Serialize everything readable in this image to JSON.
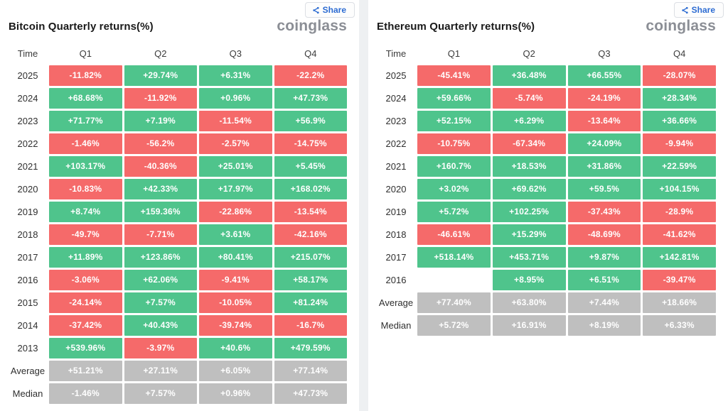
{
  "colors": {
    "pos": "#4fc48c",
    "neg": "#f56a6a",
    "sum": "#bfbfbf",
    "accent": "#2c6bd2",
    "logo": "#8b8e95"
  },
  "panels": [
    {
      "title": "Bitcoin Quarterly returns(%)",
      "share": {
        "label": "Share"
      },
      "logo": "coinglass",
      "columns": [
        "Time",
        "Q1",
        "Q2",
        "Q3",
        "Q4"
      ],
      "rows": [
        {
          "label": "2025",
          "cells": [
            {
              "text": "-11.82%",
              "type": "neg"
            },
            {
              "text": "+29.74%",
              "type": "pos"
            },
            {
              "text": "+6.31%",
              "type": "pos"
            },
            {
              "text": "-22.2%",
              "type": "neg"
            }
          ]
        },
        {
          "label": "2024",
          "cells": [
            {
              "text": "+68.68%",
              "type": "pos"
            },
            {
              "text": "-11.92%",
              "type": "neg"
            },
            {
              "text": "+0.96%",
              "type": "pos"
            },
            {
              "text": "+47.73%",
              "type": "pos"
            }
          ]
        },
        {
          "label": "2023",
          "cells": [
            {
              "text": "+71.77%",
              "type": "pos"
            },
            {
              "text": "+7.19%",
              "type": "pos"
            },
            {
              "text": "-11.54%",
              "type": "neg"
            },
            {
              "text": "+56.9%",
              "type": "pos"
            }
          ]
        },
        {
          "label": "2022",
          "cells": [
            {
              "text": "-1.46%",
              "type": "neg"
            },
            {
              "text": "-56.2%",
              "type": "neg"
            },
            {
              "text": "-2.57%",
              "type": "neg"
            },
            {
              "text": "-14.75%",
              "type": "neg"
            }
          ]
        },
        {
          "label": "2021",
          "cells": [
            {
              "text": "+103.17%",
              "type": "pos"
            },
            {
              "text": "-40.36%",
              "type": "neg"
            },
            {
              "text": "+25.01%",
              "type": "pos"
            },
            {
              "text": "+5.45%",
              "type": "pos"
            }
          ]
        },
        {
          "label": "2020",
          "cells": [
            {
              "text": "-10.83%",
              "type": "neg"
            },
            {
              "text": "+42.33%",
              "type": "pos"
            },
            {
              "text": "+17.97%",
              "type": "pos"
            },
            {
              "text": "+168.02%",
              "type": "pos"
            }
          ]
        },
        {
          "label": "2019",
          "cells": [
            {
              "text": "+8.74%",
              "type": "pos"
            },
            {
              "text": "+159.36%",
              "type": "pos"
            },
            {
              "text": "-22.86%",
              "type": "neg"
            },
            {
              "text": "-13.54%",
              "type": "neg"
            }
          ]
        },
        {
          "label": "2018",
          "cells": [
            {
              "text": "-49.7%",
              "type": "neg"
            },
            {
              "text": "-7.71%",
              "type": "neg"
            },
            {
              "text": "+3.61%",
              "type": "pos"
            },
            {
              "text": "-42.16%",
              "type": "neg"
            }
          ]
        },
        {
          "label": "2017",
          "cells": [
            {
              "text": "+11.89%",
              "type": "pos"
            },
            {
              "text": "+123.86%",
              "type": "pos"
            },
            {
              "text": "+80.41%",
              "type": "pos"
            },
            {
              "text": "+215.07%",
              "type": "pos"
            }
          ]
        },
        {
          "label": "2016",
          "cells": [
            {
              "text": "-3.06%",
              "type": "neg"
            },
            {
              "text": "+62.06%",
              "type": "pos"
            },
            {
              "text": "-9.41%",
              "type": "neg"
            },
            {
              "text": "+58.17%",
              "type": "pos"
            }
          ]
        },
        {
          "label": "2015",
          "cells": [
            {
              "text": "-24.14%",
              "type": "neg"
            },
            {
              "text": "+7.57%",
              "type": "pos"
            },
            {
              "text": "-10.05%",
              "type": "neg"
            },
            {
              "text": "+81.24%",
              "type": "pos"
            }
          ]
        },
        {
          "label": "2014",
          "cells": [
            {
              "text": "-37.42%",
              "type": "neg"
            },
            {
              "text": "+40.43%",
              "type": "pos"
            },
            {
              "text": "-39.74%",
              "type": "neg"
            },
            {
              "text": "-16.7%",
              "type": "neg"
            }
          ]
        },
        {
          "label": "2013",
          "cells": [
            {
              "text": "+539.96%",
              "type": "pos"
            },
            {
              "text": "-3.97%",
              "type": "neg"
            },
            {
              "text": "+40.6%",
              "type": "pos"
            },
            {
              "text": "+479.59%",
              "type": "pos"
            }
          ]
        },
        {
          "label": "Average",
          "cells": [
            {
              "text": "+51.21%",
              "type": "sum"
            },
            {
              "text": "+27.11%",
              "type": "sum"
            },
            {
              "text": "+6.05%",
              "type": "sum"
            },
            {
              "text": "+77.14%",
              "type": "sum"
            }
          ]
        },
        {
          "label": "Median",
          "cells": [
            {
              "text": "-1.46%",
              "type": "sum"
            },
            {
              "text": "+7.57%",
              "type": "sum"
            },
            {
              "text": "+0.96%",
              "type": "sum"
            },
            {
              "text": "+47.73%",
              "type": "sum"
            }
          ]
        }
      ]
    },
    {
      "title": "Ethereum Quarterly returns(%)",
      "share": {
        "label": "Share"
      },
      "logo": "coinglass",
      "columns": [
        "Time",
        "Q1",
        "Q2",
        "Q3",
        "Q4"
      ],
      "rows": [
        {
          "label": "2025",
          "cells": [
            {
              "text": "-45.41%",
              "type": "neg"
            },
            {
              "text": "+36.48%",
              "type": "pos"
            },
            {
              "text": "+66.55%",
              "type": "pos"
            },
            {
              "text": "-28.07%",
              "type": "neg"
            }
          ]
        },
        {
          "label": "2024",
          "cells": [
            {
              "text": "+59.66%",
              "type": "pos"
            },
            {
              "text": "-5.74%",
              "type": "neg"
            },
            {
              "text": "-24.19%",
              "type": "neg"
            },
            {
              "text": "+28.34%",
              "type": "pos"
            }
          ]
        },
        {
          "label": "2023",
          "cells": [
            {
              "text": "+52.15%",
              "type": "pos"
            },
            {
              "text": "+6.29%",
              "type": "pos"
            },
            {
              "text": "-13.64%",
              "type": "neg"
            },
            {
              "text": "+36.66%",
              "type": "pos"
            }
          ]
        },
        {
          "label": "2022",
          "cells": [
            {
              "text": "-10.75%",
              "type": "neg"
            },
            {
              "text": "-67.34%",
              "type": "neg"
            },
            {
              "text": "+24.09%",
              "type": "pos"
            },
            {
              "text": "-9.94%",
              "type": "neg"
            }
          ]
        },
        {
          "label": "2021",
          "cells": [
            {
              "text": "+160.7%",
              "type": "pos"
            },
            {
              "text": "+18.53%",
              "type": "pos"
            },
            {
              "text": "+31.86%",
              "type": "pos"
            },
            {
              "text": "+22.59%",
              "type": "pos"
            }
          ]
        },
        {
          "label": "2020",
          "cells": [
            {
              "text": "+3.02%",
              "type": "pos"
            },
            {
              "text": "+69.62%",
              "type": "pos"
            },
            {
              "text": "+59.5%",
              "type": "pos"
            },
            {
              "text": "+104.15%",
              "type": "pos"
            }
          ]
        },
        {
          "label": "2019",
          "cells": [
            {
              "text": "+5.72%",
              "type": "pos"
            },
            {
              "text": "+102.25%",
              "type": "pos"
            },
            {
              "text": "-37.43%",
              "type": "neg"
            },
            {
              "text": "-28.9%",
              "type": "neg"
            }
          ]
        },
        {
          "label": "2018",
          "cells": [
            {
              "text": "-46.61%",
              "type": "neg"
            },
            {
              "text": "+15.29%",
              "type": "pos"
            },
            {
              "text": "-48.69%",
              "type": "neg"
            },
            {
              "text": "-41.62%",
              "type": "neg"
            }
          ]
        },
        {
          "label": "2017",
          "cells": [
            {
              "text": "+518.14%",
              "type": "pos"
            },
            {
              "text": "+453.71%",
              "type": "pos"
            },
            {
              "text": "+9.87%",
              "type": "pos"
            },
            {
              "text": "+142.81%",
              "type": "pos"
            }
          ]
        },
        {
          "label": "2016",
          "cells": [
            {
              "text": "",
              "type": "empty"
            },
            {
              "text": "+8.95%",
              "type": "pos"
            },
            {
              "text": "+6.51%",
              "type": "pos"
            },
            {
              "text": "-39.47%",
              "type": "neg"
            }
          ]
        },
        {
          "label": "Average",
          "cells": [
            {
              "text": "+77.40%",
              "type": "sum"
            },
            {
              "text": "+63.80%",
              "type": "sum"
            },
            {
              "text": "+7.44%",
              "type": "sum"
            },
            {
              "text": "+18.66%",
              "type": "sum"
            }
          ]
        },
        {
          "label": "Median",
          "cells": [
            {
              "text": "+5.72%",
              "type": "sum"
            },
            {
              "text": "+16.91%",
              "type": "sum"
            },
            {
              "text": "+8.19%",
              "type": "sum"
            },
            {
              "text": "+6.33%",
              "type": "sum"
            }
          ]
        }
      ]
    }
  ],
  "chart_data": [
    {
      "type": "heatmap",
      "title": "Bitcoin Quarterly returns(%)",
      "columns": [
        "Q1",
        "Q2",
        "Q3",
        "Q4"
      ],
      "rows": [
        "2025",
        "2024",
        "2023",
        "2022",
        "2021",
        "2020",
        "2019",
        "2018",
        "2017",
        "2016",
        "2015",
        "2014",
        "2013",
        "Average",
        "Median"
      ],
      "values": [
        [
          -11.82,
          29.74,
          6.31,
          -22.2
        ],
        [
          68.68,
          -11.92,
          0.96,
          47.73
        ],
        [
          71.77,
          7.19,
          -11.54,
          56.9
        ],
        [
          -1.46,
          -56.2,
          -2.57,
          -14.75
        ],
        [
          103.17,
          -40.36,
          25.01,
          5.45
        ],
        [
          -10.83,
          42.33,
          17.97,
          168.02
        ],
        [
          8.74,
          159.36,
          -22.86,
          -13.54
        ],
        [
          -49.7,
          -7.71,
          3.61,
          -42.16
        ],
        [
          11.89,
          123.86,
          80.41,
          215.07
        ],
        [
          -3.06,
          62.06,
          -9.41,
          58.17
        ],
        [
          -24.14,
          7.57,
          -10.05,
          81.24
        ],
        [
          -37.42,
          40.43,
          -39.74,
          -16.7
        ],
        [
          539.96,
          -3.97,
          40.6,
          479.59
        ],
        [
          51.21,
          27.11,
          6.05,
          77.14
        ],
        [
          -1.46,
          7.57,
          0.96,
          47.73
        ]
      ],
      "legend_position": "none",
      "color_positive": "#4fc48c",
      "color_negative": "#f56a6a",
      "color_summary": "#bfbfbf"
    },
    {
      "type": "heatmap",
      "title": "Ethereum Quarterly returns(%)",
      "columns": [
        "Q1",
        "Q2",
        "Q3",
        "Q4"
      ],
      "rows": [
        "2025",
        "2024",
        "2023",
        "2022",
        "2021",
        "2020",
        "2019",
        "2018",
        "2017",
        "2016",
        "Average",
        "Median"
      ],
      "values": [
        [
          -45.41,
          36.48,
          66.55,
          -28.07
        ],
        [
          59.66,
          -5.74,
          -24.19,
          28.34
        ],
        [
          52.15,
          6.29,
          -13.64,
          36.66
        ],
        [
          -10.75,
          -67.34,
          24.09,
          -9.94
        ],
        [
          160.7,
          18.53,
          31.86,
          22.59
        ],
        [
          3.02,
          69.62,
          59.5,
          104.15
        ],
        [
          5.72,
          102.25,
          -37.43,
          -28.9
        ],
        [
          -46.61,
          15.29,
          -48.69,
          -41.62
        ],
        [
          518.14,
          453.71,
          9.87,
          142.81
        ],
        [
          null,
          8.95,
          6.51,
          -39.47
        ],
        [
          77.4,
          63.8,
          7.44,
          18.66
        ],
        [
          5.72,
          16.91,
          8.19,
          6.33
        ]
      ],
      "legend_position": "none",
      "color_positive": "#4fc48c",
      "color_negative": "#f56a6a",
      "color_summary": "#bfbfbf"
    }
  ]
}
